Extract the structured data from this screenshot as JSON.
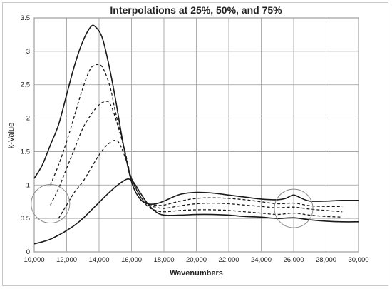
{
  "chart_data": {
    "type": "line",
    "title": "Interpolations at 25%, 50%, and 75%",
    "xlabel": "Wavenumbers",
    "ylabel": "k-Value",
    "xlim": [
      10000,
      30000
    ],
    "ylim": [
      0,
      3.5
    ],
    "xticks": [
      10000,
      12000,
      14000,
      16000,
      18000,
      20000,
      22000,
      24000,
      26000,
      28000,
      30000
    ],
    "xtick_labels": [
      "10,000",
      "12,000",
      "14,000",
      "16,000",
      "18,000",
      "20,000",
      "22,000",
      "24,000",
      "26,000",
      "28,000",
      "30,000"
    ],
    "yticks": [
      0,
      0.5,
      1,
      1.5,
      2,
      2.5,
      3,
      3.5
    ],
    "ytick_labels": [
      "0",
      "0.5",
      "1",
      "1.5",
      "2",
      "2.5",
      "3",
      "3.5"
    ],
    "grid": true,
    "series": [
      {
        "style": "solid",
        "x": [
          10000,
          10500,
          11000,
          11500,
          12000,
          12500,
          13000,
          13500,
          13800,
          14200,
          14600,
          15000,
          15500,
          16000,
          16500,
          17000,
          17500,
          18000,
          19000,
          20000,
          21000,
          22000,
          23000,
          24000,
          25000,
          25500,
          26000,
          26500,
          27000,
          28000,
          29000,
          30000
        ],
        "y": [
          1.1,
          1.3,
          1.6,
          1.9,
          2.35,
          2.8,
          3.15,
          3.37,
          3.36,
          3.2,
          2.8,
          2.3,
          1.6,
          1.05,
          0.8,
          0.72,
          0.72,
          0.76,
          0.86,
          0.89,
          0.88,
          0.85,
          0.82,
          0.79,
          0.78,
          0.8,
          0.85,
          0.8,
          0.76,
          0.76,
          0.77,
          0.77
        ]
      },
      {
        "style": "dashed",
        "x": [
          11000,
          11500,
          12000,
          12500,
          13000,
          13500,
          14000,
          14300,
          14700,
          15000,
          15500,
          16000,
          16500,
          17000,
          17500,
          18000,
          19000,
          20000,
          21000,
          22000,
          23000,
          24000,
          25000,
          26000,
          27000,
          28000,
          29000
        ],
        "y": [
          1.0,
          1.3,
          1.65,
          2.05,
          2.45,
          2.75,
          2.8,
          2.72,
          2.45,
          2.1,
          1.6,
          1.1,
          0.85,
          0.72,
          0.7,
          0.7,
          0.76,
          0.8,
          0.81,
          0.8,
          0.78,
          0.75,
          0.72,
          0.73,
          0.69,
          0.68,
          0.68
        ]
      },
      {
        "style": "dashed",
        "x": [
          11000,
          11500,
          12000,
          12500,
          13000,
          13500,
          14000,
          14500,
          14800,
          15200,
          15600,
          16000,
          16500,
          17000,
          17500,
          18000,
          19000,
          20000,
          21000,
          22000,
          23000,
          24000,
          25000,
          26000,
          27000,
          28000,
          29000
        ],
        "y": [
          0.7,
          0.95,
          1.25,
          1.55,
          1.85,
          2.05,
          2.2,
          2.25,
          2.15,
          1.85,
          1.5,
          1.1,
          0.85,
          0.7,
          0.67,
          0.65,
          0.69,
          0.72,
          0.73,
          0.72,
          0.7,
          0.68,
          0.66,
          0.67,
          0.64,
          0.62,
          0.6
        ]
      },
      {
        "style": "dashed",
        "x": [
          11500,
          12000,
          12500,
          13000,
          13500,
          14000,
          14500,
          15000,
          15300,
          15700,
          16000,
          16500,
          17000,
          17500,
          18000,
          19000,
          20000,
          21000,
          22000,
          23000,
          24000,
          25000,
          26000,
          27000,
          28000,
          29000
        ],
        "y": [
          0.5,
          0.7,
          0.9,
          1.05,
          1.25,
          1.45,
          1.6,
          1.67,
          1.6,
          1.35,
          1.1,
          0.85,
          0.68,
          0.62,
          0.6,
          0.62,
          0.63,
          0.63,
          0.62,
          0.6,
          0.58,
          0.56,
          0.58,
          0.55,
          0.53,
          0.52
        ]
      },
      {
        "style": "solid",
        "x": [
          10000,
          10500,
          11000,
          11500,
          12000,
          12500,
          13000,
          13500,
          14000,
          14500,
          15000,
          15500,
          15800,
          16100,
          16500,
          17000,
          17500,
          18000,
          19000,
          20000,
          21000,
          22000,
          23000,
          24000,
          25000,
          26000,
          27000,
          28000,
          29000,
          30000
        ],
        "y": [
          0.12,
          0.15,
          0.19,
          0.25,
          0.32,
          0.4,
          0.5,
          0.62,
          0.74,
          0.86,
          0.97,
          1.06,
          1.09,
          1.05,
          0.9,
          0.72,
          0.6,
          0.55,
          0.55,
          0.56,
          0.56,
          0.55,
          0.53,
          0.52,
          0.5,
          0.51,
          0.48,
          0.46,
          0.45,
          0.45
        ]
      }
    ],
    "annotations": [
      {
        "shape": "circle",
        "x": 11000,
        "y": 0.72
      },
      {
        "shape": "circle",
        "x": 26000,
        "y": 0.65
      }
    ]
  }
}
